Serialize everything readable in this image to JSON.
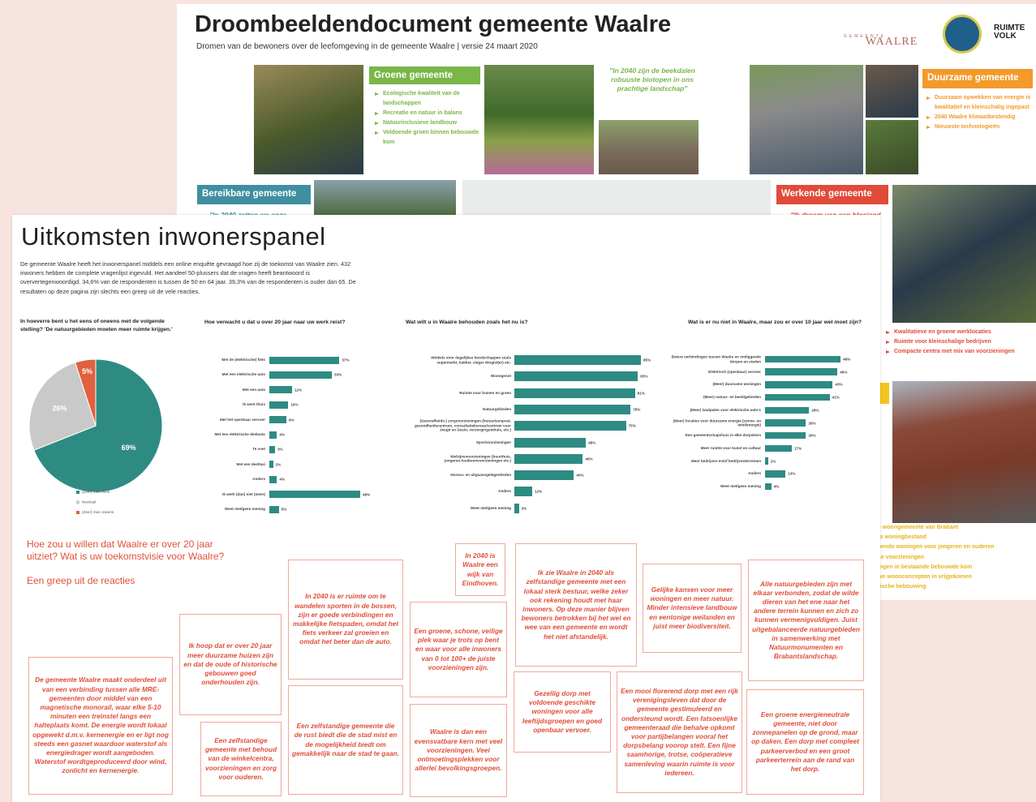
{
  "back_poster": {
    "title": "Droombeeldendocument gemeente Waalre",
    "subtitle": "Dromen van de bewoners over de leefomgeving in de gemeente Waalre | versie 24 maart 2020",
    "logos": [
      "GEMEENTE",
      "WAALRE",
      "RUIMTE VOLK"
    ],
    "sections": [
      {
        "heading": "Groene gemeente",
        "bullets": [
          "Ecologische kwaliteit van de landschappen",
          "Recreatie en natuur in balans",
          "Natuurinclusieve landbouw",
          "Voldoende groen binnen bebouwde kom"
        ]
      },
      {
        "heading": "Duurzame gemeente",
        "bullets": [
          "Duurzaam opwekken van energie is kwalitatief en kleinschalig ingepast",
          "2040 Waalre klimaatbestendig",
          "Nieuwste technologieën"
        ]
      },
      {
        "heading": "Bereikbare gemeente"
      },
      {
        "heading": "Werkende gemeente"
      }
    ],
    "quotes": [
      "\"In 2040 zijn de beekdalen robuuste biotopen in ons prachtige landschap\"",
      "\"In 2040 zetten we onze",
      "\"Ik droom van een bloeiend"
    ],
    "work_bullets": [
      "Kwalitatieve en groene werklocaties",
      "Ruimte voor kleinschalige bedrijven",
      "Compacte centra met mix van voorzieningen"
    ],
    "living_fragments": [
      "e woongemeente van Brabant",
      "rs woningbestand",
      "oende woningen voor jongeren en ouderen",
      "se voorzieningen",
      "ingen in bestaande bebouwde kom",
      "we woonconcepten in vrijgekomen",
      "rische bebouwing"
    ]
  },
  "front_poster": {
    "title": "Uitkomsten inwonerspanel",
    "intro": "De gemeente Waalre heeft het inwonerspanel middels een online enquête gevraagd hoe zij de toekomst van Waalre zien. 432 inwoners hebben de complete vragenlijst ingevuld. Het aandeel 50-plussers dat de vragen heeft beantwoord is oververtegenwoordigd. 34,6% van de respondenten is tussen de 50 en 64 jaar. 39,3% van de respondenten is ouder dan 65. De resultaten op deze pagina zijn slechts een greep uit de vele reacties.",
    "question": "Hoe zou u willen dat Waalre er over 20 jaar uitziet? Wat is uw toekomstvisie voor Waalre?",
    "question_sub": "Een greep uit de reacties",
    "responses": [
      "De gemeente Waalre maakt onderdeel uit van een verbinding tussen alle MRE-gemeenten door middel van een magnetische monorail, waar elke 5-10 minuten een treinstel langs een halteplaats komt. De energie wordt lokaal opgewekt d.m.v. kernenergie en er ligt nog steeds een gasnet waardoor waterstof als energiedrager wordt aangeboden. Waterstof wordtgeproduceerd door wind, zonlicht en kernenergie.",
      "Ik hoop dat er over 20 jaar meer duurzame huizen zijn en dat de oude of historische gebouwen goed onderhouden zijn.",
      "Een zelfstandige gemeente met behoud van de winkelcentra, voorzieningen en zorg voor ouderen.",
      "In 2040 is er ruimte om te wandelen sporten in de bossen, zijn er goede verbindingen en makkelijke fietspaden, omdat het fiets verkeer zal groeien en omdat het beter dan de auto.",
      "Een zelfstandige gemeente die de rust biedt die de stad mist en de mogelijkheid biedt om gemakkelijk naar de stad te gaan.",
      "In 2040 is Waalre een wijk van Eindhoven.",
      "Een groene, schone, veilige plek waar je trots op bent en waar voor alle inwoners van 0 tot 100+ de juiste voorzieningen zijn.",
      "Waalre is dan een evensvatbare kern met veel voorzieningen. Veel ontmoetingsplekken voor allerlei bevolkingsgroepen.",
      "Ik zie Waalre in 2040 als zelfstandige gemeente met een lokaal sterk bestuur, welke zeker ook rekening houdt met haar inwoners. Op deze manier blijven bewoners betrokken bij het wel en wee van een gemeente en wordt het niet afstandelijk.",
      "Gezellig dorp met voldoende geschikte woningen voor alle leeftijdsgroepen en goed openbaar vervoer.",
      "Gelijke kansen voor meer woningen en meer natuur. Minder intensieve landbouw en eentonige weilanden en juist meer biodiversiteit.",
      "Een mooi florerend dorp met een rijk verenigingsleven dat door de gemeente gestimuleerd en ondersteund wordt. Een fatsoenlijke gemeenteraad die behalve opkomt voor partijbelangen vooral het dorpsbelang voorop stelt. Een fijne saamhorige, trotse, coöperatieve samenleving waarin ruimte is voor iedereen.",
      "Alle natuurgebieden zijn met elkaar verbonden, zodat de wilde dieren van het ene naar het andere terrein kunnen en zich zo kunnen vermenigvuldigen. Juist uitgebalanceerde natuurgebieden in samenwerking met Natuurmonumenten en Brabantslandschap.",
      "Een groene energieneutrale gemeente, niet door zonnepanelen op de grond, maar op daken. Een dorp met compleet parkeerverbod en een groot parkeerterrein aan de rand van het dorp."
    ]
  },
  "chart_data": [
    {
      "type": "pie",
      "title": "In hoeverre bent u het eens of oneens met de volgende stelling? 'De natuurgebieden moeten meer ruimte krijgen.'",
      "categories": [
        "(Zeer) mee eens",
        "Neutraal",
        "(Zeer) mee oneens"
      ],
      "values": [
        69,
        26,
        5
      ],
      "value_labels": [
        "69%",
        "26%",
        "5%"
      ],
      "colors": [
        "#2e8b84",
        "#c9c9c9",
        "#e0603f"
      ],
      "legend": "bottom"
    },
    {
      "type": "hbar",
      "title": "Hoe verwacht u dat u over 20 jaar naar uw werk reist?",
      "categories": [
        "Met de (elektrische) fiets",
        "Met een elektrische auto",
        "Met een auto",
        "Ik werk thuis",
        "Met het openbaar vervoer",
        "Met een elektrische deelauto",
        "Te voet",
        "Met een deeltaxi",
        "Anders",
        "Ik werk (dan) niet (meer)",
        "Weet niet/geen mening"
      ],
      "values": [
        37,
        33,
        12,
        10,
        9,
        4,
        3,
        2,
        4,
        48,
        5
      ],
      "value_labels": [
        "37%",
        "33%",
        "12%",
        "10%",
        "9%",
        "4%",
        "3%",
        "2%",
        "4%",
        "48%",
        "5%"
      ],
      "color": "#2e8b84",
      "xlim": [
        0,
        50
      ]
    },
    {
      "type": "hbar",
      "title": "Wat wilt u in Waalre behouden zoals het nu is?",
      "categories": [
        "Winkels voor dagelijkse boodschappen zoals supermarkt, bakker, slager drogist(er) etc.",
        "Woongenot",
        "Ruimte voor bomen en groen",
        "Natuurgebieden",
        "(Gezondheids-) zorgvoorzieningen (huisartsenpost, gezondheidscentrum, consultatiebureau/centrum voor Jeugd en Gezin, verzorgingstehuis, etc.)",
        "Sportvoorzieningen",
        "Welzijnsvoorzieningen (buurthuis, jongeren-/ouderenvoorzieningen etc.)",
        "Horeca- en uitgaansgelegenheden",
        "Anders",
        "Weet niet/geen mening"
      ],
      "values": [
        85,
        83,
        81,
        78,
        75,
        48,
        46,
        40,
        12,
        3
      ],
      "value_labels": [
        "85%",
        "83%",
        "81%",
        "78%",
        "75%",
        "48%",
        "46%",
        "40%",
        "12%",
        "3%"
      ],
      "color": "#2e8b84",
      "xlim": [
        0,
        100
      ]
    },
    {
      "type": "hbar",
      "title": "Wat is er nu niet in Waalre, maar zou er over 10 jaar wel moet zijn?",
      "categories": [
        "Betere verbindingen tussen Waalre en omliggende dorpen en steden",
        "Elektrisch (openbaar) vervoer",
        "(Meer) duurzame woningen",
        "(Meer) natuur- en beeldgebieden",
        "(Meer) laadpalen voor elektrische auto's",
        "(Meer) locaties voor duurzame energie (zonne- en windenergie)",
        "Een gemeentschapshuis in elke dorpskern",
        "Meer ruimte voor kunst en cultuur",
        "Meer bedrijven en/of bedrijventerreinen",
        "Anders",
        "Weet niet/geen mening"
      ],
      "values": [
        48,
        46,
        43,
        41,
        28,
        26,
        26,
        17,
        2,
        13,
        4
      ],
      "value_labels": [
        "48%",
        "46%",
        "43%",
        "41%",
        "28%",
        "26%",
        "26%",
        "17%",
        "2%",
        "13%",
        "4%"
      ],
      "color": "#2e8b84",
      "xlim": [
        0,
        50
      ]
    }
  ]
}
